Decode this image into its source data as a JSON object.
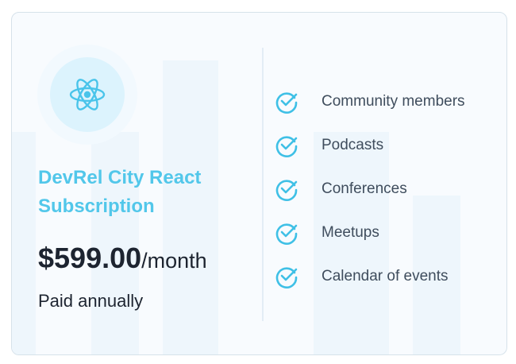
{
  "plan": {
    "icon": "react-atom-icon",
    "title": "DevRel City React Subscription",
    "price": "$599.00",
    "period": "/month",
    "billing": "Paid annually"
  },
  "features": [
    {
      "label": "Community members",
      "icon": "check-circle-icon"
    },
    {
      "label": "Podcasts",
      "icon": "check-circle-icon"
    },
    {
      "label": "Conferences",
      "icon": "check-circle-icon"
    },
    {
      "label": "Meetups",
      "icon": "check-circle-icon"
    },
    {
      "label": "Calendar of events",
      "icon": "check-circle-icon"
    }
  ],
  "colors": {
    "accent": "#52c7ea",
    "text": "#1d2430",
    "feature_text": "#3f4d5d"
  }
}
